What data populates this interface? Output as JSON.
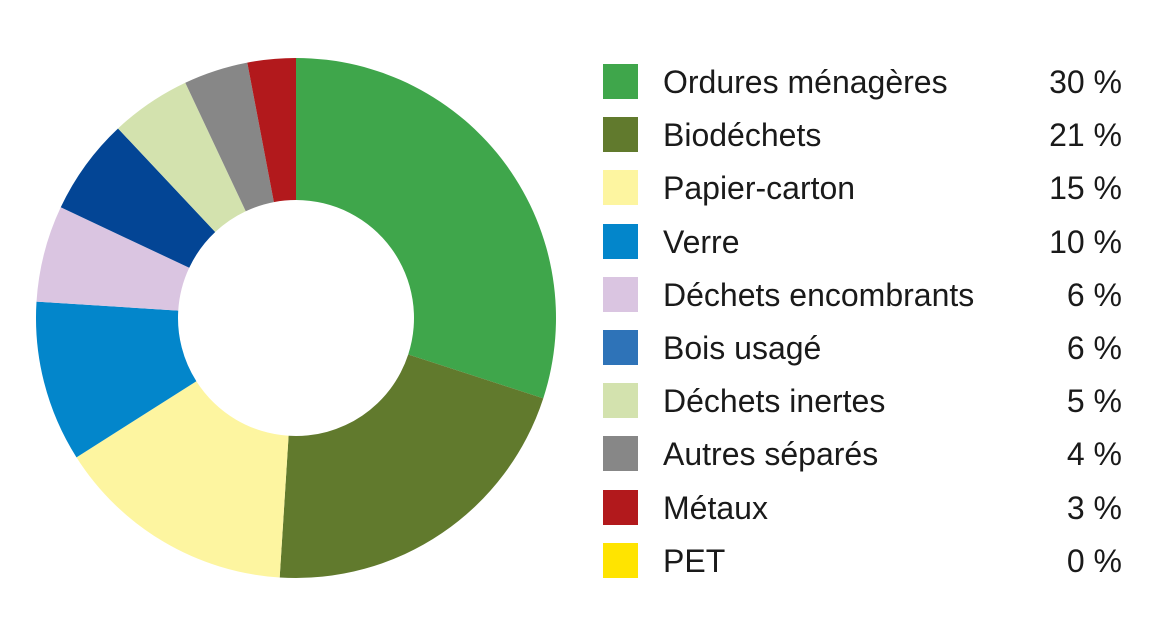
{
  "chart_data": {
    "type": "pie",
    "donut": true,
    "title": "",
    "legend_position": "right",
    "series": [
      {
        "name": "Ordures ménagères",
        "value": 30,
        "label": "30 %",
        "color": "#3fa64b",
        "swatch_color": "#3fa64b"
      },
      {
        "name": "Biodéchets",
        "value": 21,
        "label": "21 %",
        "color": "#617a2d",
        "swatch_color": "#617a2d"
      },
      {
        "name": "Papier-carton",
        "value": 15,
        "label": "15 %",
        "color": "#fdf5a0",
        "swatch_color": "#fdf5a0"
      },
      {
        "name": "Verre",
        "value": 10,
        "label": "10 %",
        "color": "#0386cb",
        "swatch_color": "#0386cb"
      },
      {
        "name": "Déchets encombrants",
        "value": 6,
        "label": "6 %",
        "color": "#dac5e1",
        "swatch_color": "#dac5e1"
      },
      {
        "name": "Bois usagé",
        "value": 6,
        "label": "6 %",
        "color": "#034595",
        "swatch_color": "#2e73b8"
      },
      {
        "name": "Déchets inertes",
        "value": 5,
        "label": "5 %",
        "color": "#d3e2ae",
        "swatch_color": "#d3e2ae"
      },
      {
        "name": "Autres séparés",
        "value": 4,
        "label": "4 %",
        "color": "#878787",
        "swatch_color": "#878787"
      },
      {
        "name": "Métaux",
        "value": 3,
        "label": "3 %",
        "color": "#b2191c",
        "swatch_color": "#b2191c"
      },
      {
        "name": "PET",
        "value": 0,
        "label": "0 %",
        "color": "#ffe400",
        "swatch_color": "#ffe400"
      }
    ]
  }
}
